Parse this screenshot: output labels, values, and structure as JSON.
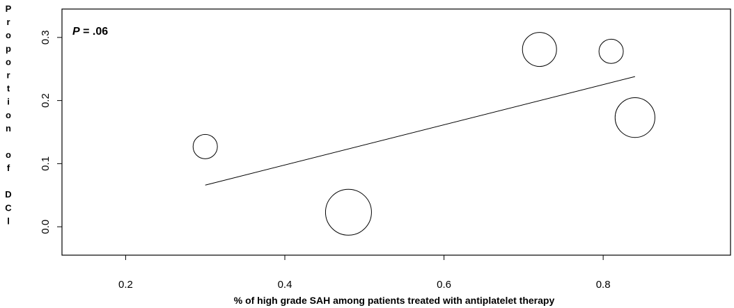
{
  "chart_data": {
    "type": "scatter",
    "title": "",
    "xlabel": "% of high grade SAH among patients treated with antiplatelet therapy",
    "ylabel": "Proportion of DCl",
    "xlim": [
      0.12,
      0.96
    ],
    "ylim": [
      -0.045,
      0.345
    ],
    "x_ticks": [
      0.2,
      0.4,
      0.6,
      0.8
    ],
    "x_tick_labels": [
      "0.2",
      "0.4",
      "0.6",
      "0.8"
    ],
    "y_ticks": [
      0.0,
      0.1,
      0.2,
      0.3
    ],
    "y_tick_labels": [
      "0.0",
      "0.1",
      "0.2",
      "0.3"
    ],
    "annotation": {
      "italic_part": "P",
      "rest": " = .06"
    },
    "points": [
      {
        "x": 0.3,
        "y": 0.127,
        "weight": 0.28
      },
      {
        "x": 0.48,
        "y": 0.023,
        "weight": 1.0
      },
      {
        "x": 0.72,
        "y": 0.281,
        "weight": 0.55
      },
      {
        "x": 0.81,
        "y": 0.278,
        "weight": 0.28
      },
      {
        "x": 0.84,
        "y": 0.173,
        "weight": 0.75
      }
    ],
    "trend_line": {
      "x": [
        0.3,
        0.84
      ],
      "y": [
        0.066,
        0.238
      ]
    },
    "grid": false,
    "legend": "none"
  }
}
